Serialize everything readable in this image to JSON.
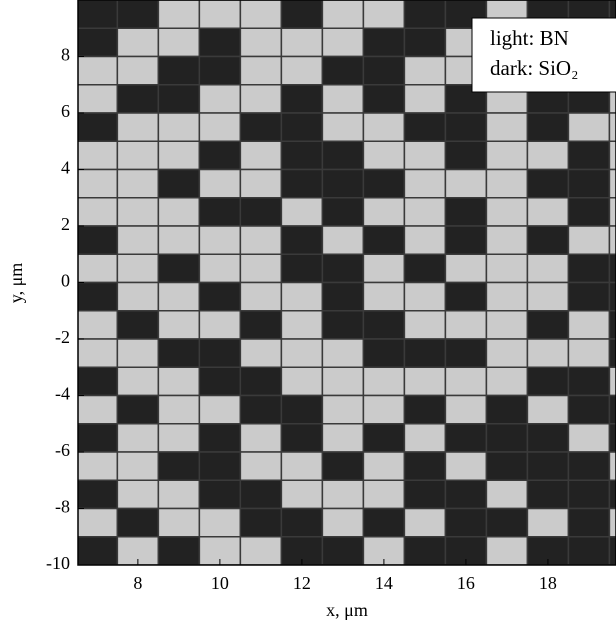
{
  "chart_data": {
    "type": "heatmap",
    "xlabel": "x, μm",
    "ylabel": "y, μm",
    "legend": [
      "light: BN",
      "dark: SiO₂"
    ],
    "colors": [
      "#222222",
      "#cbcbcb"
    ],
    "xlim": [
      6.54,
      19.66
    ],
    "ylim": [
      -10,
      10
    ],
    "xticks": [
      8,
      10,
      12,
      14,
      16,
      18
    ],
    "yticks": [
      -10,
      -8,
      -6,
      -4,
      -2,
      0,
      2,
      4,
      6,
      8
    ],
    "x": [
      7,
      8,
      9,
      10,
      11,
      12,
      13,
      14,
      15,
      16,
      17,
      18,
      19,
      20
    ],
    "y": [
      9.5,
      8.5,
      7.5,
      6.5,
      5.5,
      4.5,
      3.5,
      2.5,
      1.5,
      0.5,
      -0.5,
      -1.5,
      -2.5,
      -3.5,
      -4.5,
      -5.5,
      -6.5,
      -7.5,
      -8.5,
      -9.5
    ],
    "values": [
      [
        0,
        0,
        1,
        1,
        1,
        0,
        1,
        1,
        0,
        0,
        1,
        0,
        0,
        0
      ],
      [
        0,
        1,
        1,
        0,
        1,
        1,
        1,
        0,
        0,
        1,
        1,
        0,
        0,
        0
      ],
      [
        1,
        1,
        0,
        0,
        1,
        1,
        0,
        0,
        1,
        1,
        0,
        0,
        0,
        0
      ],
      [
        1,
        0,
        0,
        1,
        1,
        0,
        1,
        0,
        1,
        0,
        1,
        0,
        0,
        1
      ],
      [
        0,
        1,
        1,
        1,
        0,
        0,
        1,
        1,
        0,
        0,
        1,
        0,
        1,
        1
      ],
      [
        1,
        1,
        1,
        0,
        1,
        0,
        0,
        1,
        1,
        0,
        1,
        1,
        0,
        1
      ],
      [
        1,
        1,
        0,
        1,
        1,
        0,
        0,
        0,
        1,
        1,
        1,
        0,
        0,
        1
      ],
      [
        1,
        1,
        1,
        0,
        0,
        1,
        0,
        1,
        1,
        0,
        1,
        1,
        0,
        1
      ],
      [
        0,
        1,
        1,
        1,
        1,
        0,
        1,
        0,
        1,
        0,
        1,
        0,
        1,
        1
      ],
      [
        1,
        1,
        0,
        1,
        1,
        0,
        0,
        1,
        0,
        1,
        1,
        1,
        0,
        0
      ],
      [
        0,
        1,
        1,
        0,
        1,
        1,
        0,
        1,
        1,
        0,
        1,
        1,
        0,
        0
      ],
      [
        1,
        0,
        1,
        1,
        0,
        1,
        0,
        0,
        1,
        1,
        1,
        0,
        1,
        0
      ],
      [
        1,
        1,
        0,
        0,
        1,
        1,
        1,
        0,
        0,
        0,
        1,
        1,
        1,
        0
      ],
      [
        0,
        1,
        1,
        0,
        0,
        1,
        1,
        1,
        1,
        1,
        1,
        0,
        0,
        1
      ],
      [
        1,
        0,
        1,
        1,
        0,
        0,
        1,
        1,
        0,
        1,
        0,
        1,
        0,
        0
      ],
      [
        0,
        1,
        1,
        0,
        1,
        0,
        1,
        0,
        1,
        0,
        0,
        0,
        1,
        0
      ],
      [
        1,
        1,
        0,
        0,
        1,
        1,
        0,
        1,
        0,
        1,
        0,
        0,
        0,
        1
      ],
      [
        0,
        1,
        1,
        0,
        0,
        1,
        1,
        1,
        0,
        0,
        1,
        0,
        0,
        0
      ],
      [
        1,
        0,
        1,
        1,
        0,
        0,
        1,
        0,
        1,
        0,
        0,
        1,
        0,
        1
      ],
      [
        0,
        1,
        0,
        1,
        1,
        0,
        0,
        1,
        0,
        0,
        1,
        0,
        0,
        0
      ]
    ]
  }
}
